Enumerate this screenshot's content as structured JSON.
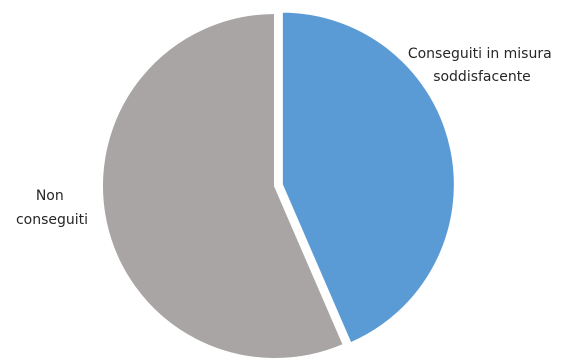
{
  "chart_data": {
    "type": "pie",
    "title": "",
    "start_angle_deg": 0,
    "direction": "clockwise",
    "exploded_slice": 0,
    "slices": [
      {
        "label_lines": [
          "Conseguiti in misura",
          "soddisfacente"
        ],
        "value": 43.5,
        "color": "#5b9bd5"
      },
      {
        "label_lines": [
          "Non",
          "conseguiti"
        ],
        "value": 56.5,
        "color": "#a9a5a4"
      }
    ]
  }
}
